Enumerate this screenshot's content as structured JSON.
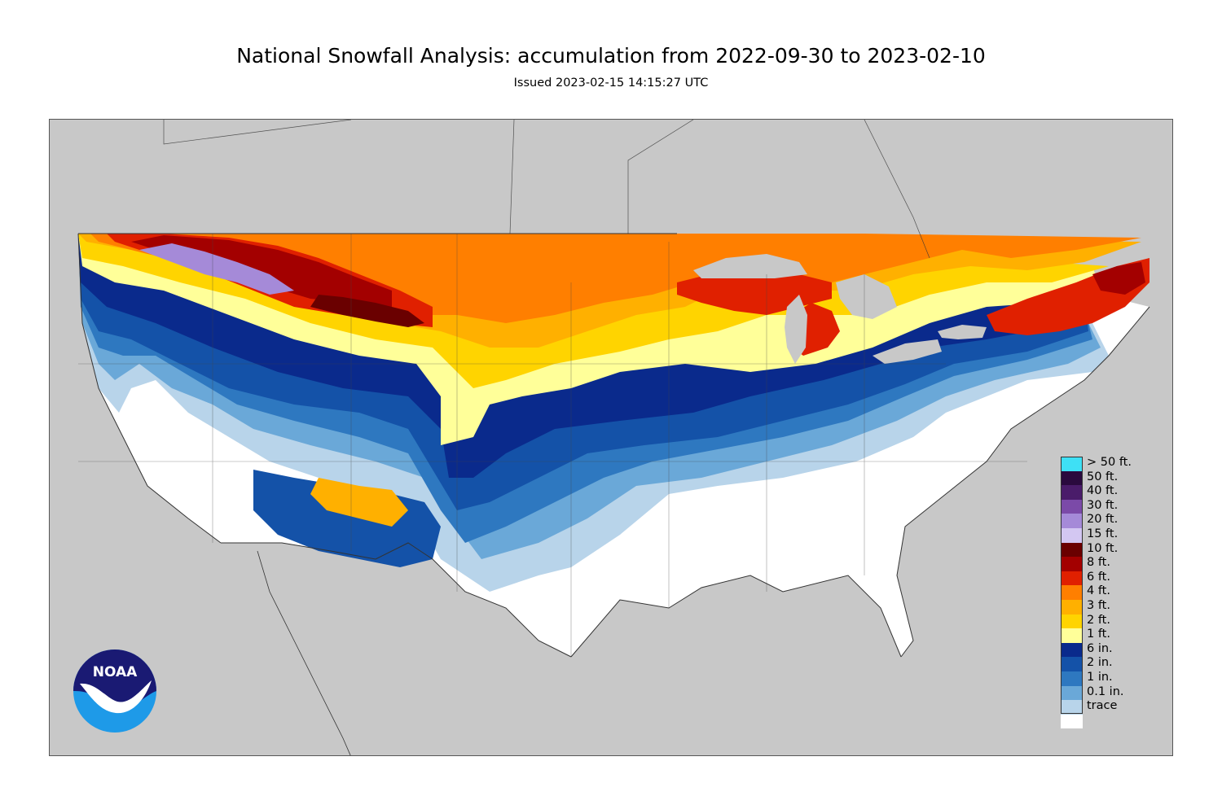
{
  "header": {
    "title": "National Snowfall Analysis: accumulation from 2022-09-30 to 2023-02-10",
    "issued": "Issued 2023-02-15 14:15:27 UTC"
  },
  "logo": {
    "text": "NOAA",
    "icon": "noaa-logo-icon"
  },
  "legend": {
    "items": [
      {
        "label": "> 50 ft.",
        "color": "#3ee0f5"
      },
      {
        "label": "50 ft.",
        "color": "#2a0a3e"
      },
      {
        "label": "40 ft.",
        "color": "#4a1c6a"
      },
      {
        "label": "30 ft.",
        "color": "#7b4aa8"
      },
      {
        "label": "20 ft.",
        "color": "#a58ad8"
      },
      {
        "label": "15 ft.",
        "color": "#d3c7f2"
      },
      {
        "label": "10 ft.",
        "color": "#6a0000"
      },
      {
        "label": "8 ft.",
        "color": "#a30000"
      },
      {
        "label": "6 ft.",
        "color": "#e02000"
      },
      {
        "label": "4 ft.",
        "color": "#ff7f00"
      },
      {
        "label": "3 ft.",
        "color": "#ffb000"
      },
      {
        "label": "2 ft.",
        "color": "#ffd400"
      },
      {
        "label": "1 ft.",
        "color": "#ffff99"
      },
      {
        "label": "6 in.",
        "color": "#0a2a8c"
      },
      {
        "label": "2 in.",
        "color": "#1452a8"
      },
      {
        "label": "1 in.",
        "color": "#2e78c0"
      },
      {
        "label": "0.1 in.",
        "color": "#6aa8d8"
      },
      {
        "label": "trace",
        "color": "#b8d4ea"
      },
      {
        "label": "",
        "color": "#ffffff"
      }
    ]
  },
  "map": {
    "background": "#c8c8c8",
    "colors": {
      "trace": "#ffffff",
      "tenth_in": "#b8d4ea",
      "one_in": "#6aa8d8",
      "two_in": "#2e78c0",
      "six_in": "#1452a8",
      "one_ft": "#0a2a8c",
      "two_ft": "#ffff99",
      "three_ft": "#ffd400",
      "four_ft": "#ffb000",
      "six_ft": "#ff7f00",
      "eight_ft": "#e02000",
      "ten_ft": "#a30000",
      "fifteen_ft": "#6a0000",
      "twenty_ft": "#a58ad8"
    }
  }
}
